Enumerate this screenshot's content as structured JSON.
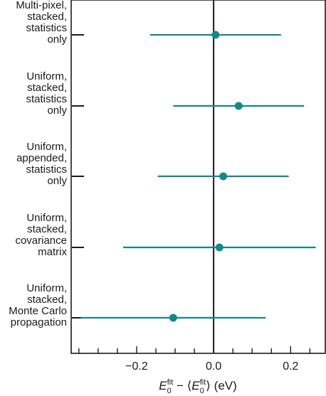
{
  "chart_data": {
    "type": "scatter",
    "categories": [
      [
        "Multi-pixel,",
        "stacked,",
        "statistics",
        "only"
      ],
      [
        "Uniform,",
        "stacked,",
        "statistics",
        "only"
      ],
      [
        "Uniform,",
        "appended,",
        "statistics",
        "only"
      ],
      [
        "Uniform,",
        "stacked,",
        "covariance",
        "matrix"
      ],
      [
        "Uniform,",
        "stacked,",
        "Monte Carlo",
        "propagation"
      ]
    ],
    "series": [
      {
        "points": [
          {
            "x": 0.005,
            "xerr_low": -0.165,
            "xerr_high": 0.175
          },
          {
            "x": 0.065,
            "xerr_low": -0.105,
            "xerr_high": 0.235
          },
          {
            "x": 0.025,
            "xerr_low": -0.145,
            "xerr_high": 0.195
          },
          {
            "x": 0.015,
            "xerr_low": -0.235,
            "xerr_high": 0.265
          },
          {
            "x": -0.105,
            "xerr_low": -0.345,
            "xerr_high": 0.135
          }
        ]
      }
    ],
    "xlim": [
      -0.37,
      0.29
    ],
    "xticks": [
      -0.2,
      0.0,
      0.2
    ],
    "xtick_labels": [
      "−0.2",
      "0.0",
      "0.2"
    ],
    "xminor_step": 0.05,
    "zero_line": true,
    "grid": false,
    "xlabel": "E0fit − ⟨E0fit⟩ (eV)",
    "colors": {
      "marker": "#14878a",
      "axes": "#1a1a1a"
    }
  }
}
